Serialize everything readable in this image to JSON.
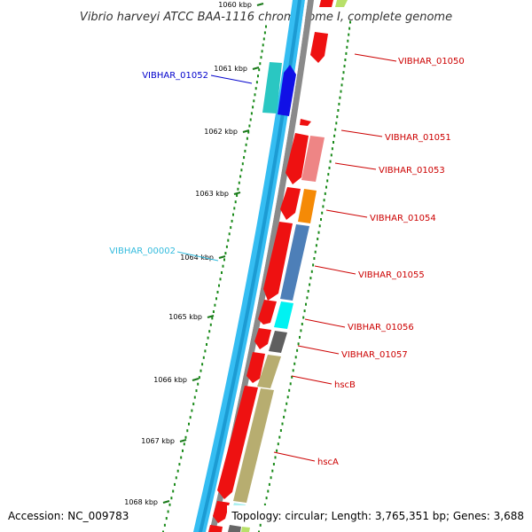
{
  "title": "Vibrio harveyi ATCC BAA-1116 chromosome I, complete genome",
  "accession": "Accession: NC_009783",
  "summary": "Topology: circular; Length: 3,765,351 bp; Genes: 3,688",
  "colors": {
    "backbone_blue": "#2ab3ee",
    "backbone_gray": "#888888",
    "tick_green": "#1a7a1a",
    "label_red": "#cc0000",
    "label_blue": "#0000cc",
    "label_cyan": "#33bbdd"
  },
  "scale_ticks": [
    {
      "label": "1060 kbp"
    },
    {
      "label": "1061 kbp"
    },
    {
      "label": "1062 kbp"
    },
    {
      "label": "1063 kbp"
    },
    {
      "label": "1064 kbp"
    },
    {
      "label": "1065 kbp"
    },
    {
      "label": "1066 kbp"
    },
    {
      "label": "1067 kbp"
    },
    {
      "label": "1068 kbp"
    }
  ],
  "gene_labels": [
    {
      "name": "VIBHAR_01050",
      "color": "#cc0000"
    },
    {
      "name": "VIBHAR_01052",
      "color": "#0000cc"
    },
    {
      "name": "VIBHAR_01051",
      "color": "#cc0000"
    },
    {
      "name": "VIBHAR_01053",
      "color": "#cc0000"
    },
    {
      "name": "VIBHAR_01054",
      "color": "#cc0000"
    },
    {
      "name": "VIBHAR_00002",
      "color": "#33bbdd"
    },
    {
      "name": "VIBHAR_01055",
      "color": "#cc0000"
    },
    {
      "name": "VIBHAR_01056",
      "color": "#cc0000"
    },
    {
      "name": "VIBHAR_01057",
      "color": "#cc0000"
    },
    {
      "name": "hscB",
      "color": "#cc0000"
    },
    {
      "name": "hscA",
      "color": "#cc0000"
    }
  ]
}
